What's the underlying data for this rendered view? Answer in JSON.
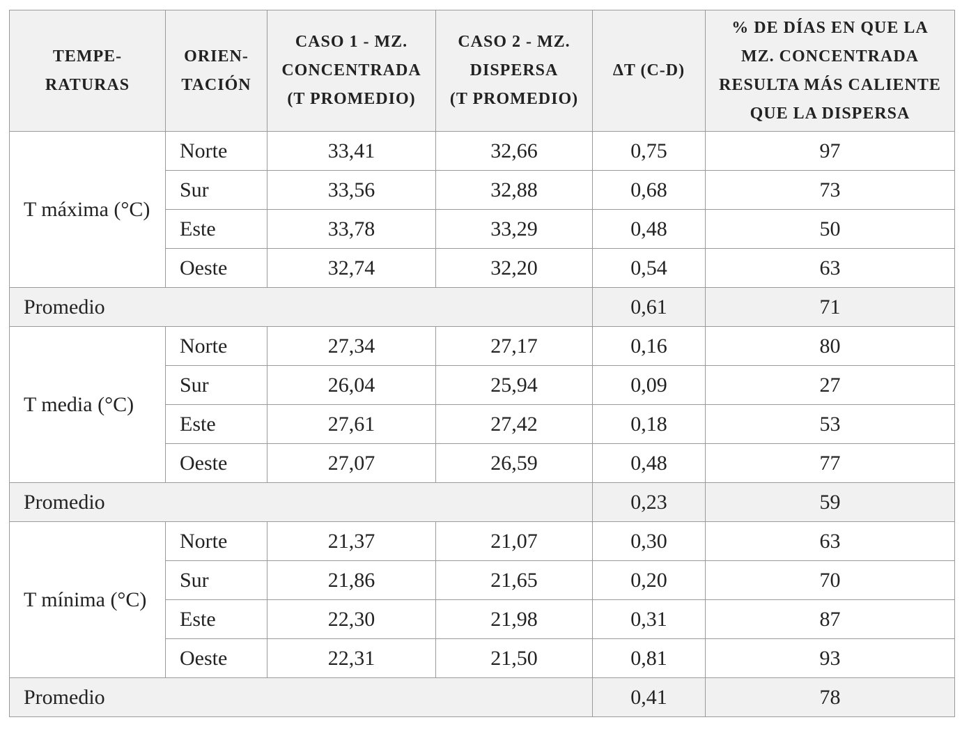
{
  "table": {
    "header": [
      [
        "TEMPE-",
        "RATURAS"
      ],
      [
        "ORIEN-",
        "TACIÓN"
      ],
      [
        "CASO 1 - MZ.",
        "CONCENTRADA",
        "(T PROMEDIO)"
      ],
      [
        "CASO 2 - MZ.",
        "DISPERSA",
        "(T PROMEDIO)"
      ],
      [
        "ΔT (C-D)"
      ],
      [
        "% DE DÍAS EN QUE LA",
        "MZ. CONCENTRADA",
        "RESULTA MÁS CALIENTE",
        "QUE LA DISPERSA"
      ]
    ],
    "sections": [
      {
        "label": "T máxima (°C)",
        "rows": [
          [
            "Norte",
            "33,41",
            "32,66",
            "0,75",
            "97"
          ],
          [
            "Sur",
            "33,56",
            "32,88",
            "0,68",
            "73"
          ],
          [
            "Este",
            "33,78",
            "33,29",
            "0,48",
            "50"
          ],
          [
            "Oeste",
            "32,74",
            "32,20",
            "0,54",
            "63"
          ]
        ],
        "average": [
          "Promedio",
          "0,61",
          "71"
        ]
      },
      {
        "label": "T media (°C)",
        "rows": [
          [
            "Norte",
            "27,34",
            "27,17",
            "0,16",
            "80"
          ],
          [
            "Sur",
            "26,04",
            "25,94",
            "0,09",
            "27"
          ],
          [
            "Este",
            "27,61",
            "27,42",
            "0,18",
            "53"
          ],
          [
            "Oeste",
            "27,07",
            "26,59",
            "0,48",
            "77"
          ]
        ],
        "average": [
          "Promedio",
          "0,23",
          "59"
        ]
      },
      {
        "label": "T mínima (°C)",
        "rows": [
          [
            "Norte",
            "21,37",
            "21,07",
            "0,30",
            "63"
          ],
          [
            "Sur",
            "21,86",
            "21,65",
            "0,20",
            "70"
          ],
          [
            "Este",
            "22,30",
            "21,98",
            "0,31",
            "87"
          ],
          [
            "Oeste",
            "22,31",
            "21,50",
            "0,81",
            "93"
          ]
        ],
        "average": [
          "Promedio",
          "0,41",
          "78"
        ]
      }
    ]
  }
}
